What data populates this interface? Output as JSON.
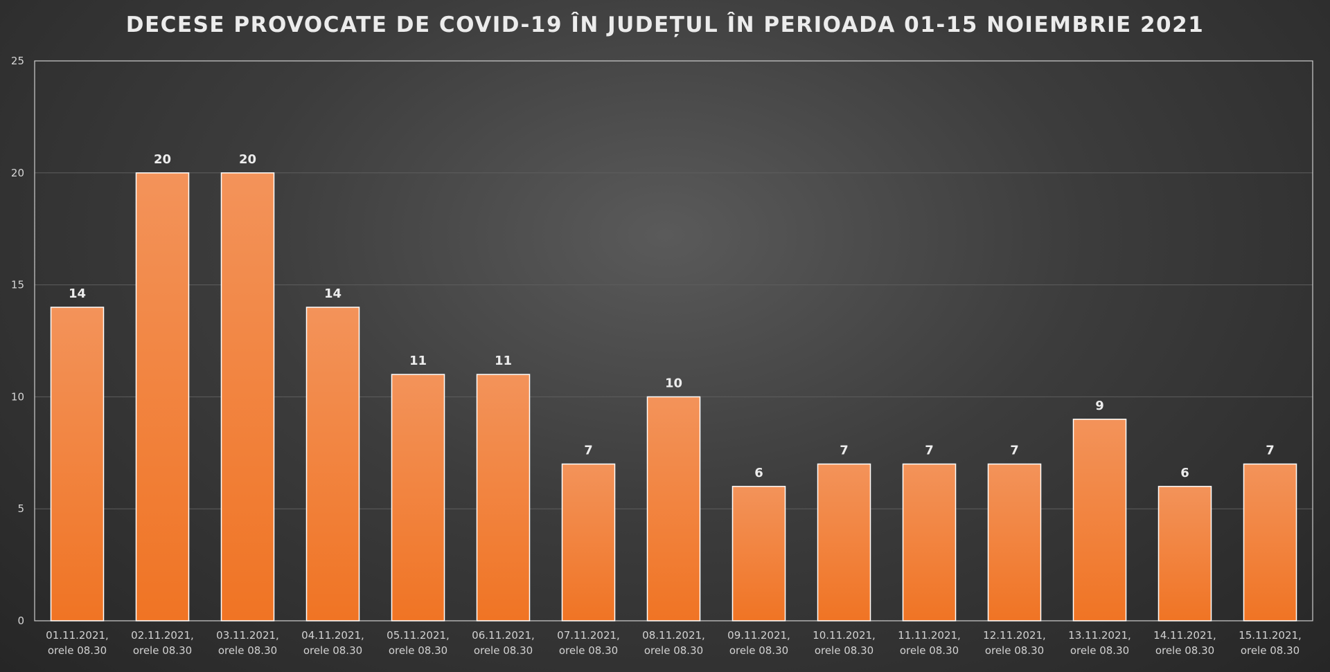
{
  "chart_data": {
    "type": "bar",
    "title": "DECESE PROVOCATE DE COVID-19 ÎN JUDEȚUL ÎN PERIOADA 01-15 NOIEMBRIE 2021",
    "xlabel": "",
    "ylabel": "",
    "ylim": [
      0,
      25
    ],
    "yticks": [
      0,
      5,
      10,
      15,
      20,
      25
    ],
    "grid": true,
    "legend": "none",
    "categories": [
      [
        "01.11.2021,",
        "orele 08.30"
      ],
      [
        "02.11.2021,",
        "orele 08.30"
      ],
      [
        "03.11.2021,",
        "orele 08.30"
      ],
      [
        "04.11.2021,",
        "orele 08.30"
      ],
      [
        "05.11.2021,",
        "orele 08.30"
      ],
      [
        "06.11.2021,",
        "orele 08.30"
      ],
      [
        "07.11.2021,",
        "orele 08.30"
      ],
      [
        "08.11.2021,",
        "orele 08.30"
      ],
      [
        "09.11.2021,",
        "orele 08.30"
      ],
      [
        "10.11.2021,",
        "orele 08.30"
      ],
      [
        "11.11.2021,",
        "orele 08.30"
      ],
      [
        "12.11.2021,",
        "orele 08.30"
      ],
      [
        "13.11.2021,",
        "orele 08.30"
      ],
      [
        "14.11.2021,",
        "orele 08.30"
      ],
      [
        "15.11.2021,",
        "orele 08.30"
      ]
    ],
    "values": [
      14,
      20,
      20,
      14,
      11,
      11,
      7,
      10,
      6,
      7,
      7,
      7,
      9,
      6,
      7
    ],
    "colors": {
      "bar_top": "#f3935a",
      "bar_bottom": "#f07424",
      "bar_edge": "#ffffff",
      "axis": "#cfcfcf",
      "grid": "#5e5e5e"
    }
  }
}
